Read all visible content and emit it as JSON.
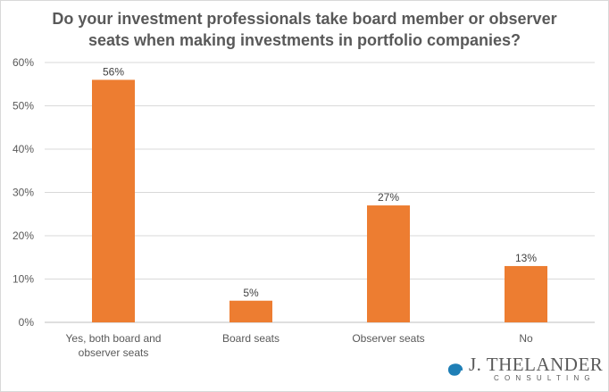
{
  "chart_data": {
    "type": "bar",
    "title_lines": [
      "Do your investment professionals take board member or observer",
      "seats when making investments in portfolio companies?"
    ],
    "categories": [
      [
        "Yes, both board and",
        "observer seats"
      ],
      [
        "Board seats"
      ],
      [
        "Observer seats"
      ],
      [
        "No"
      ]
    ],
    "values": [
      56,
      5,
      27,
      13
    ],
    "data_labels": [
      "56%",
      "5%",
      "27%",
      "13%"
    ],
    "y_ticks": [
      "0%",
      "10%",
      "20%",
      "30%",
      "40%",
      "50%",
      "60%"
    ],
    "ylim": [
      0,
      60
    ],
    "grid": true,
    "legend": "none",
    "bar_color": "#ed7d31"
  },
  "logo": {
    "name": "J. THELANDER",
    "subtitle": "CONSULTING",
    "icon": "spiral-logo-icon",
    "icon_color": "#1f7fb6"
  }
}
